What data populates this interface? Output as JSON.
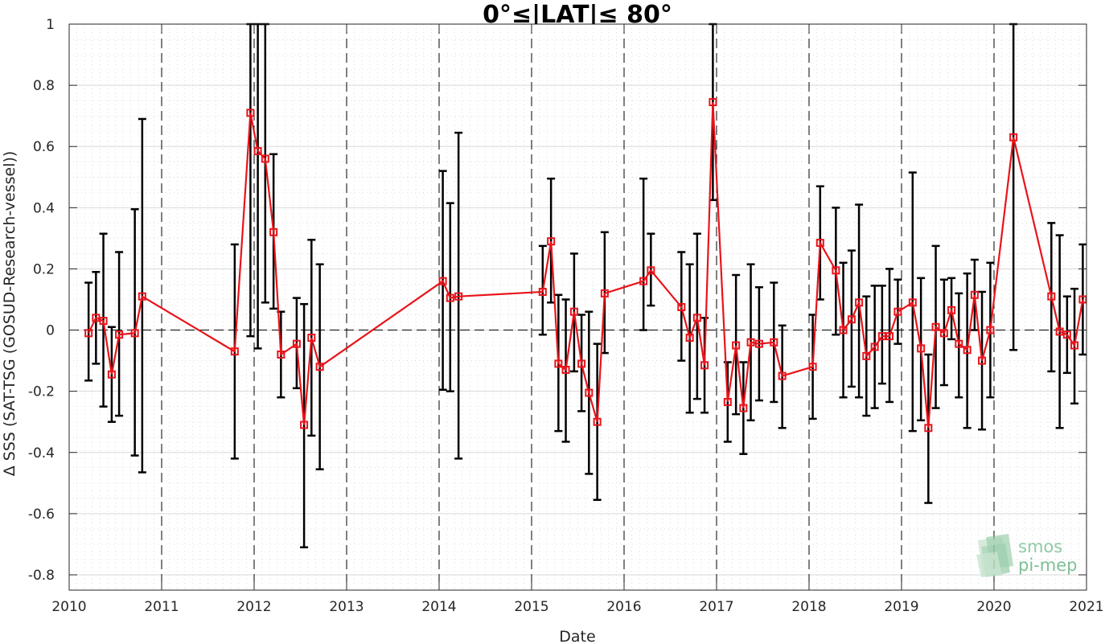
{
  "chart_data": {
    "type": "line",
    "title": "0°≤|LAT|≤ 80°",
    "xlabel": "Date",
    "ylabel": "Δ SSS (SAT-TSG (GOSUD-Research-vessel))",
    "xlim": [
      2010,
      2021
    ],
    "ylim": [
      -0.85,
      1.0
    ],
    "xticks": [
      2010,
      2011,
      2012,
      2013,
      2014,
      2015,
      2016,
      2017,
      2018,
      2019,
      2020,
      2021
    ],
    "xtick_labels": [
      "2010",
      "2011",
      "2012",
      "2013",
      "2014",
      "2015",
      "2016",
      "2017",
      "2018",
      "2019",
      "2020",
      "2021"
    ],
    "yticks": [
      -0.8,
      -0.6,
      -0.4,
      -0.2,
      0,
      0.2,
      0.4,
      0.6,
      0.8,
      1
    ],
    "ytick_labels": [
      "-0.8",
      "-0.6",
      "-0.4",
      "-0.2",
      "0",
      "0.2",
      "0.4",
      "0.6",
      "0.8",
      "1"
    ],
    "grid": true,
    "year_boundaries": [
      2011,
      2012,
      2013,
      2014,
      2015,
      2016,
      2017,
      2018,
      2019,
      2020
    ],
    "zero_line": 0,
    "colors": {
      "series": "#e8141b",
      "errorbar": "#000000",
      "grid": "#d9d9d9",
      "logo": "#7fbf97"
    },
    "series": [
      {
        "x": [
          2010.21,
          2010.29,
          2010.37,
          2010.46,
          2010.54,
          2010.71,
          2010.79,
          2011.79,
          2011.96,
          2012.04,
          2012.12,
          2012.21,
          2012.29,
          2012.46,
          2012.54,
          2012.62,
          2012.71,
          2014.04,
          2014.12,
          2014.21,
          2015.12,
          2015.21,
          2015.29,
          2015.37,
          2015.46,
          2015.54,
          2015.62,
          2015.71,
          2015.79,
          2016.21,
          2016.29,
          2016.62,
          2016.71,
          2016.79,
          2016.87,
          2016.96,
          2017.12,
          2017.21,
          2017.29,
          2017.37,
          2017.46,
          2017.62,
          2017.71,
          2018.04,
          2018.12,
          2018.29,
          2018.37,
          2018.46,
          2018.54,
          2018.62,
          2018.71,
          2018.79,
          2018.87,
          2018.96,
          2019.12,
          2019.21,
          2019.29,
          2019.37,
          2019.46,
          2019.54,
          2019.62,
          2019.71,
          2019.79,
          2019.87,
          2019.96,
          2020.21,
          2020.62,
          2020.71,
          2020.79,
          2020.87,
          2020.96
        ],
        "y": [
          -0.01,
          0.04,
          0.03,
          -0.145,
          -0.015,
          -0.01,
          0.11,
          -0.07,
          0.71,
          0.585,
          0.56,
          0.32,
          -0.08,
          -0.045,
          -0.31,
          -0.025,
          -0.12,
          0.16,
          0.105,
          0.11,
          0.125,
          0.29,
          -0.11,
          -0.13,
          0.06,
          -0.11,
          -0.205,
          -0.3,
          0.12,
          0.16,
          0.195,
          0.075,
          -0.025,
          0.04,
          -0.115,
          0.745,
          -0.235,
          -0.05,
          -0.255,
          -0.04,
          -0.045,
          -0.04,
          -0.15,
          -0.12,
          0.285,
          0.195,
          0.0,
          0.035,
          0.09,
          -0.085,
          -0.055,
          -0.02,
          -0.02,
          0.06,
          0.09,
          -0.06,
          -0.32,
          0.01,
          -0.01,
          0.065,
          -0.045,
          -0.065,
          0.115,
          -0.1,
          0.0,
          0.63,
          0.11,
          -0.005,
          -0.015,
          -0.05,
          0.1
        ],
        "err_low": [
          -0.165,
          -0.11,
          -0.25,
          -0.3,
          -0.28,
          -0.41,
          -0.465,
          -0.42,
          -0.02,
          -0.06,
          0.09,
          0.07,
          -0.22,
          -0.19,
          -0.71,
          -0.345,
          -0.455,
          -0.195,
          -0.2,
          -0.42,
          -0.015,
          0.09,
          -0.33,
          -0.365,
          -0.135,
          -0.265,
          -0.47,
          -0.555,
          -0.075,
          0.0,
          0.08,
          -0.1,
          -0.27,
          -0.225,
          -0.27,
          0.425,
          -0.365,
          -0.275,
          -0.405,
          -0.295,
          -0.23,
          -0.235,
          -0.32,
          -0.29,
          0.1,
          -0.015,
          -0.22,
          -0.185,
          -0.22,
          -0.28,
          -0.255,
          -0.175,
          -0.235,
          -0.045,
          -0.33,
          -0.295,
          -0.565,
          -0.255,
          -0.18,
          -0.03,
          -0.22,
          -0.32,
          0.0,
          -0.325,
          -0.22,
          -0.065,
          -0.135,
          -0.32,
          -0.14,
          -0.24,
          -0.08
        ],
        "err_high": [
          0.155,
          0.19,
          0.315,
          0.01,
          0.255,
          0.395,
          0.69,
          0.28,
          1.0,
          1.0,
          1.0,
          0.575,
          0.06,
          0.105,
          0.085,
          0.295,
          0.215,
          0.52,
          0.415,
          0.645,
          0.275,
          0.495,
          0.115,
          0.1,
          0.25,
          0.05,
          0.06,
          -0.045,
          0.32,
          0.495,
          0.315,
          0.255,
          0.215,
          0.315,
          0.04,
          1.0,
          -0.105,
          0.18,
          -0.105,
          0.215,
          0.14,
          0.155,
          0.015,
          0.05,
          0.47,
          0.4,
          0.22,
          0.26,
          0.41,
          0.11,
          0.145,
          0.145,
          0.2,
          0.165,
          0.515,
          0.17,
          -0.08,
          0.275,
          0.165,
          0.17,
          0.12,
          0.185,
          0.23,
          0.125,
          0.22,
          1.0,
          0.35,
          0.31,
          0.11,
          0.135,
          0.28
        ]
      }
    ]
  },
  "logo": {
    "line1": "smos",
    "line2": "pi-mep"
  }
}
